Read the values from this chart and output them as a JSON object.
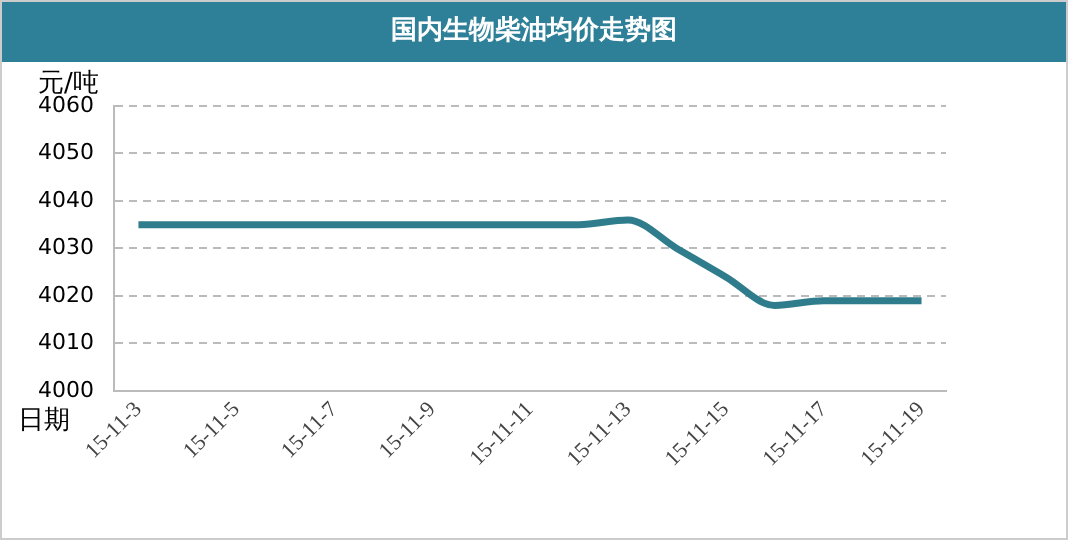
{
  "chart_data": {
    "type": "line",
    "title": "国内生物柴油均价走势图",
    "ylabel": "元/吨",
    "xlabel": "日期",
    "categories": [
      "15-11-3",
      null,
      "15-11-5",
      null,
      "15-11-7",
      null,
      "15-11-9",
      null,
      "15-11-11",
      null,
      "15-11-13",
      null,
      "15-11-15",
      null,
      "15-11-17",
      null,
      "15-11-19"
    ],
    "series": [
      {
        "color": "#2f7d8c",
        "values": [
          4035,
          4035,
          4035,
          4035,
          4035,
          4035,
          4035,
          4035,
          4035,
          4035,
          4036,
          4030,
          4024,
          4018,
          4019,
          4019,
          4019
        ]
      }
    ],
    "ylim": [
      4000,
      4060
    ],
    "yticks": [
      4000,
      4010,
      4020,
      4030,
      4040,
      4050,
      4060
    ],
    "grid": "y",
    "legend": false,
    "marker": "none",
    "line_style": "solid"
  }
}
